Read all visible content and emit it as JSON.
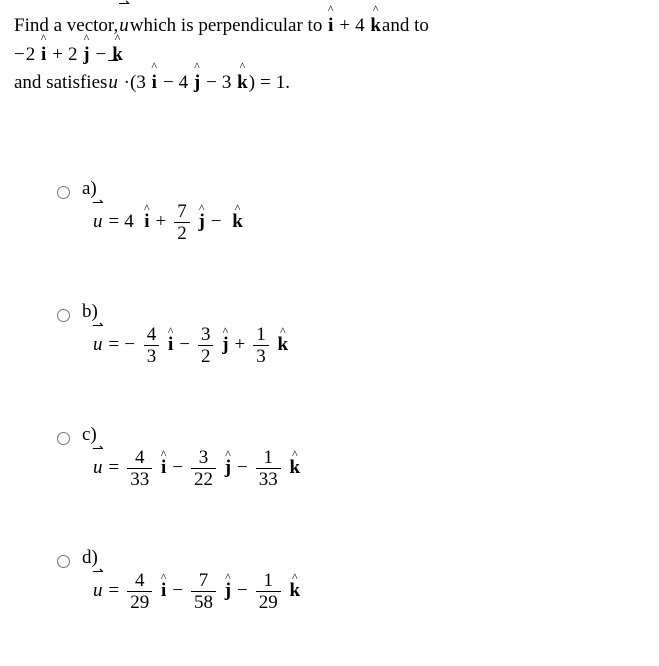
{
  "colors": {
    "text": "#000000",
    "background": "#ffffff"
  },
  "typography": {
    "family": "Times New Roman",
    "size_pt": 14
  },
  "glyphs": {
    "u_vec": "u",
    "i_hat": "i",
    "j_hat": "j",
    "k_hat": "k",
    "arrow": "⇀",
    "caret": "^",
    "dot": "·",
    "minus": "−",
    "plus": "+",
    "eq": "="
  },
  "stem": {
    "line1_a": "Find a vector, ",
    "line1_b": " which is perpendicular to ",
    "v1_c1": "",
    "v1_c2": "4",
    "line1_c": " and to",
    "line2_c1": "2",
    "line2_c2": "2",
    "line2_c3": "",
    "line3_a": "and satisfies ",
    "dot_c1": "3",
    "dot_c2": "4",
    "dot_c3": "3",
    "rhs": "1",
    "period": " ."
  },
  "options": [
    {
      "label": "a)",
      "terms": [
        {
          "sign": "",
          "coef": {
            "type": "int",
            "val": "4"
          },
          "unit": "i"
        },
        {
          "sign": "+",
          "coef": {
            "type": "frac",
            "num": "7",
            "den": "2"
          },
          "unit": "j"
        },
        {
          "sign": "−",
          "coef": {
            "type": "none"
          },
          "unit": "k"
        }
      ]
    },
    {
      "label": "b)",
      "terms": [
        {
          "sign": "−",
          "lead": true,
          "coef": {
            "type": "frac",
            "num": "4",
            "den": "3"
          },
          "unit": "i"
        },
        {
          "sign": "−",
          "coef": {
            "type": "frac",
            "num": "3",
            "den": "2"
          },
          "unit": "j"
        },
        {
          "sign": "+",
          "coef": {
            "type": "frac",
            "num": "1",
            "den": "3"
          },
          "unit": "k"
        }
      ]
    },
    {
      "label": "c)",
      "terms": [
        {
          "sign": "",
          "coef": {
            "type": "frac",
            "num": "4",
            "den": "33"
          },
          "unit": "i"
        },
        {
          "sign": "−",
          "coef": {
            "type": "frac",
            "num": "3",
            "den": "22"
          },
          "unit": "j"
        },
        {
          "sign": "−",
          "coef": {
            "type": "frac",
            "num": "1",
            "den": "33"
          },
          "unit": "k"
        }
      ]
    },
    {
      "label": "d)",
      "terms": [
        {
          "sign": "",
          "coef": {
            "type": "frac",
            "num": "4",
            "den": "29"
          },
          "unit": "i"
        },
        {
          "sign": "−",
          "coef": {
            "type": "frac",
            "num": "7",
            "den": "58"
          },
          "unit": "j"
        },
        {
          "sign": "−",
          "coef": {
            "type": "frac",
            "num": "1",
            "den": "29"
          },
          "unit": "k"
        }
      ]
    }
  ]
}
